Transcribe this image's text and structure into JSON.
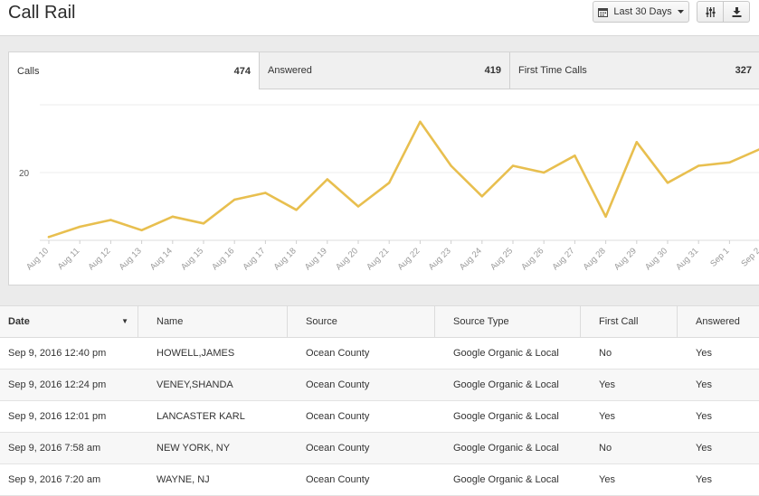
{
  "header": {
    "title": "Call Rail"
  },
  "toolbar": {
    "date_range_label": "Last 30 Days",
    "date_icon": "calendar-icon",
    "filter_icon": "sliders-icon",
    "download_icon": "download-icon"
  },
  "tabs": [
    {
      "label": "Calls",
      "count": "474"
    },
    {
      "label": "Answered",
      "count": "419"
    },
    {
      "label": "First Time Calls",
      "count": "327"
    }
  ],
  "chart_data": {
    "type": "line",
    "x": [
      "Aug 10",
      "Aug 11",
      "Aug 12",
      "Aug 13",
      "Aug 14",
      "Aug 15",
      "Aug 16",
      "Aug 17",
      "Aug 18",
      "Aug 19",
      "Aug 20",
      "Aug 21",
      "Aug 22",
      "Aug 23",
      "Aug 24",
      "Aug 25",
      "Aug 26",
      "Aug 27",
      "Aug 28",
      "Aug 29",
      "Aug 30",
      "Aug 31",
      "Sep 1",
      "Sep 2"
    ],
    "series": [
      {
        "values": [
          1,
          4,
          6,
          3,
          7,
          5,
          12,
          14,
          9,
          18,
          10,
          17,
          35,
          22,
          13,
          22,
          20,
          25,
          7,
          29,
          17,
          22,
          23,
          27
        ]
      }
    ],
    "y_ticks": [
      20
    ],
    "ylim": [
      0,
      40
    ],
    "grid": true,
    "color": "#e8bf4f"
  },
  "table": {
    "columns": [
      "Date",
      "Name",
      "Source",
      "Source Type",
      "First Call",
      "Answered"
    ],
    "rows": [
      [
        "Sep 9, 2016 12:40 pm",
        "HOWELL,JAMES",
        "Ocean County",
        "Google Organic & Local",
        "No",
        "Yes"
      ],
      [
        "Sep 9, 2016 12:24 pm",
        "VENEY,SHANDA",
        "Ocean County",
        "Google Organic & Local",
        "Yes",
        "Yes"
      ],
      [
        "Sep 9, 2016 12:01 pm",
        "LANCASTER KARL",
        "Ocean County",
        "Google Organic & Local",
        "Yes",
        "Yes"
      ],
      [
        "Sep 9, 2016 7:58 am",
        "NEW YORK, NY",
        "Ocean County",
        "Google Organic & Local",
        "No",
        "Yes"
      ],
      [
        "Sep 9, 2016 7:20 am",
        "WAYNE, NJ",
        "Ocean County",
        "Google Organic & Local",
        "Yes",
        "Yes"
      ]
    ]
  }
}
